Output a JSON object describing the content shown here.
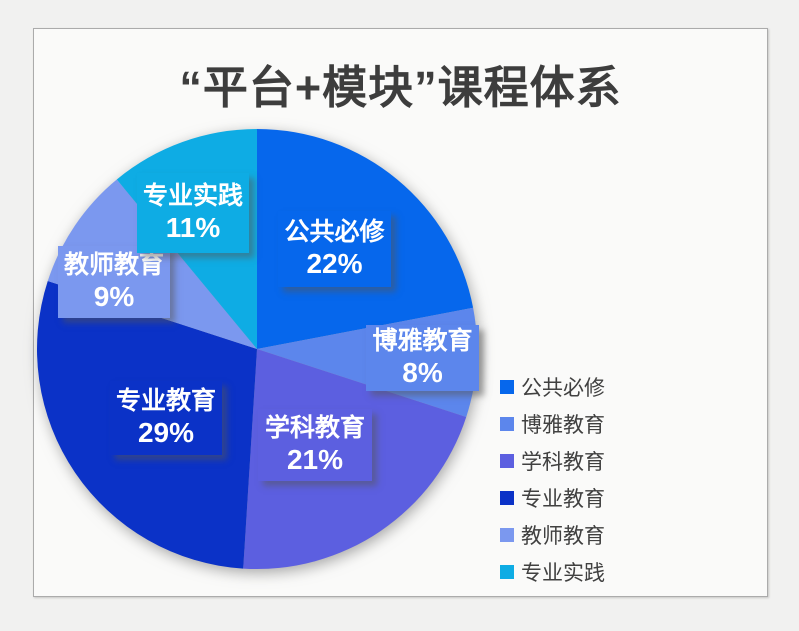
{
  "chart_data": {
    "type": "pie",
    "title": "“平台+模块”课程体系",
    "slices": [
      {
        "label": "公共必修",
        "value": 22,
        "pct_label": "22%",
        "color": "#0667ec"
      },
      {
        "label": "博雅教育",
        "value": 8,
        "pct_label": "8%",
        "color": "#5c86ec"
      },
      {
        "label": "学科教育",
        "value": 21,
        "pct_label": "21%",
        "color": "#5c5fe0"
      },
      {
        "label": "专业教育",
        "value": 29,
        "pct_label": "29%",
        "color": "#0b32c7"
      },
      {
        "label": "教师教育",
        "value": 9,
        "pct_label": "9%",
        "color": "#7b98ef"
      },
      {
        "label": "专业实践",
        "value": 11,
        "pct_label": "11%",
        "color": "#0eace4"
      }
    ],
    "legend": {
      "position": "right",
      "items": [
        "公共必修",
        "博雅教育",
        "学科教育",
        "专业教育",
        "教师教育",
        "专业实践"
      ]
    },
    "start_angle_deg": 0,
    "direction": "clockwise",
    "data_labels": "name_and_percent"
  },
  "style": {
    "page_background": "#f1f1f0",
    "card_background": "#fafaf9",
    "card_border": "#ababab",
    "title_color": "#3d3d3d",
    "label_text_color": "#ffffff",
    "legend_text_color": "#404040"
  }
}
